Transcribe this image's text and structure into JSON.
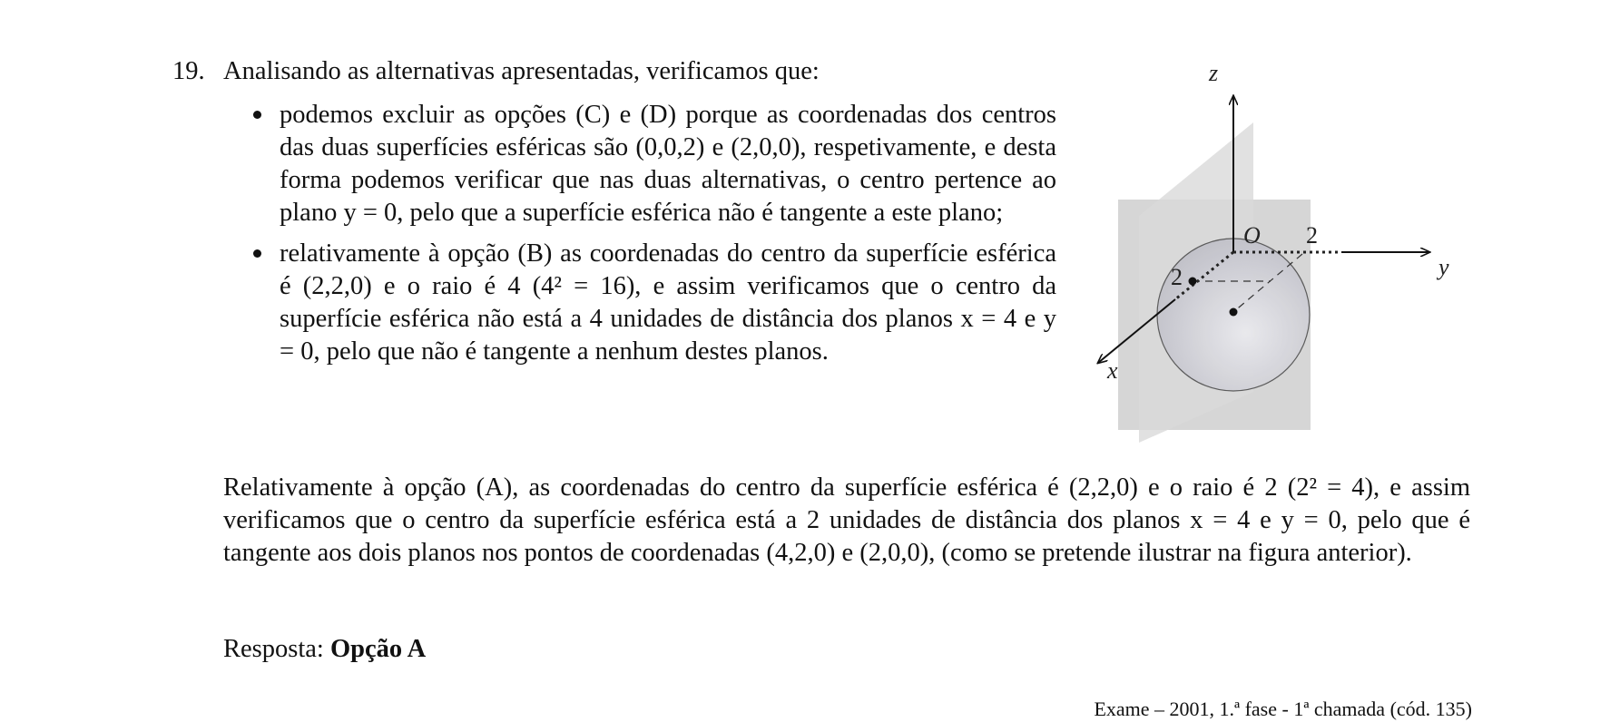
{
  "question": {
    "number": "19.",
    "intro": "Analisando as alternativas apresentadas, verificamos que:",
    "bullets": [
      "podemos excluir as opções (C) e (D) porque as coordenadas dos centros das duas superfícies esféricas são (0,0,2) e (2,0,0), respetivamente, e desta forma podemos verificar que nas duas alternativas, o centro pertence ao plano y = 0, pelo que a superfície esférica não é tangente a este plano;",
      "relativamente à opção (B) as coordenadas do centro da superfície esférica é (2,2,0) e o raio é 4 (4² = 16), e assim verificamos que o centro da superfície esférica não está a 4 unidades de distância dos planos x = 4 e y = 0, pelo que não é tangente a nenhum destes planos."
    ]
  },
  "figure": {
    "labels": {
      "z": "z",
      "y": "y",
      "x": "x",
      "origin": "O",
      "tick_y": "2",
      "tick_x": "2"
    }
  },
  "conclusion": "Relativamente à opção (A), as coordenadas do centro da superfície esférica é (2,2,0) e o raio é 2 (2² = 4), e assim verificamos que o centro da superfície esférica está a 2 unidades de distância dos planos x = 4 e y = 0, pelo que é tangente aos dois planos nos pontos de coordenadas (4,2,0) e (2,0,0), (como se pretende ilustrar na figura anterior).",
  "answer": {
    "label": "Resposta:",
    "value": "Opção A"
  },
  "source": "Exame – 2001, 1.ª fase - 1ª chamada (cód. 135)"
}
